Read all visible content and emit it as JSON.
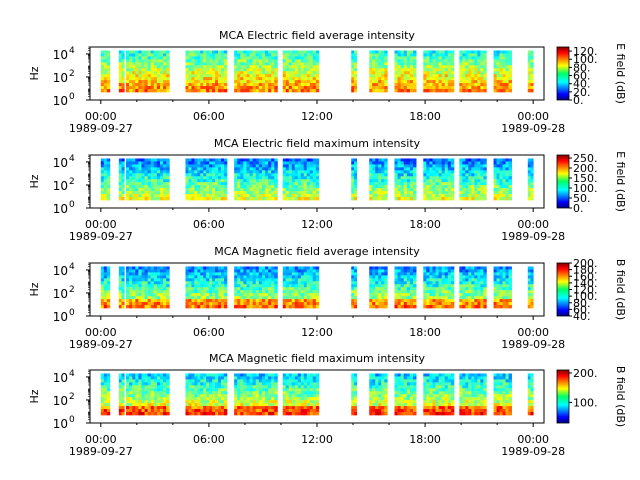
{
  "chart_data": [
    {
      "type": "heatmap",
      "title": "MCA  Electric field average intensity",
      "ylabel": "Hz",
      "y_scale": "log",
      "ylim": [
        1,
        40000
      ],
      "y_ticks": [
        {
          "value": 1,
          "label": "10",
          "exp": "0"
        },
        {
          "value": 100,
          "label": "10",
          "exp": "2"
        },
        {
          "value": 10000,
          "label": "10",
          "exp": "4"
        }
      ],
      "x_ticks": [
        "00:00",
        "06:00",
        "12:00",
        "18:00",
        "00:00"
      ],
      "x_dates": [
        "1989-09-27",
        "1989-09-28"
      ],
      "xlim_hours": [
        -0.6,
        24.6
      ],
      "colorbar": {
        "label": "E field (dB)",
        "range": [
          0,
          130
        ],
        "ticks": [
          "0.",
          "20.",
          "40.",
          "60.",
          "80.",
          "100.",
          "120."
        ],
        "tick_values": [
          0,
          20,
          40,
          60,
          80,
          100,
          120
        ]
      },
      "data_intervals_hours": [
        [
          0,
          0.5
        ],
        [
          1,
          1.3
        ],
        [
          1.4,
          3.8
        ],
        [
          4.7,
          7
        ],
        [
          7.4,
          9.8
        ],
        [
          10.1,
          12.1
        ],
        [
          13.9,
          14.2
        ],
        [
          14.9,
          15.9
        ],
        [
          16.3,
          17.5
        ],
        [
          17.9,
          19.6
        ],
        [
          19.9,
          21.4
        ],
        [
          21.8,
          22.8
        ],
        [
          23.7,
          24
        ]
      ],
      "mean_level_db": 75
    },
    {
      "type": "heatmap",
      "title": "MCA  Electric field maximum intensity",
      "ylabel": "Hz",
      "y_scale": "log",
      "ylim": [
        1,
        40000
      ],
      "y_ticks": [
        {
          "value": 1,
          "label": "10",
          "exp": "0"
        },
        {
          "value": 100,
          "label": "10",
          "exp": "2"
        },
        {
          "value": 10000,
          "label": "10",
          "exp": "4"
        }
      ],
      "x_ticks": [
        "00:00",
        "06:00",
        "12:00",
        "18:00",
        "00:00"
      ],
      "x_dates": [
        "1989-09-27",
        "1989-09-28"
      ],
      "xlim_hours": [
        -0.6,
        24.6
      ],
      "colorbar": {
        "label": "E field (dB)",
        "range": [
          0,
          265
        ],
        "ticks": [
          "0.",
          "50.",
          "100.",
          "150.",
          "200.",
          "250."
        ],
        "tick_values": [
          0,
          50,
          100,
          150,
          200,
          250
        ]
      },
      "data_intervals_hours": [
        [
          0,
          0.5
        ],
        [
          1,
          1.3
        ],
        [
          1.4,
          3.8
        ],
        [
          4.7,
          7
        ],
        [
          7.4,
          9.8
        ],
        [
          10.1,
          12.1
        ],
        [
          13.9,
          14.2
        ],
        [
          14.9,
          15.9
        ],
        [
          16.3,
          17.5
        ],
        [
          17.9,
          19.6
        ],
        [
          19.9,
          21.4
        ],
        [
          21.8,
          22.8
        ],
        [
          23.7,
          24
        ]
      ],
      "mean_level_db": 110
    },
    {
      "type": "heatmap",
      "title": "MCA  Magnetic field average intensity",
      "ylabel": "Hz",
      "y_scale": "log",
      "ylim": [
        1,
        40000
      ],
      "y_ticks": [
        {
          "value": 1,
          "label": "10",
          "exp": "0"
        },
        {
          "value": 100,
          "label": "10",
          "exp": "2"
        },
        {
          "value": 10000,
          "label": "10",
          "exp": "4"
        }
      ],
      "x_ticks": [
        "00:00",
        "06:00",
        "12:00",
        "18:00",
        "00:00"
      ],
      "x_dates": [
        "1989-09-27",
        "1989-09-28"
      ],
      "xlim_hours": [
        -0.6,
        24.6
      ],
      "colorbar": {
        "label": "B field (dB)",
        "range": [
          40,
          200
        ],
        "ticks": [
          "40.",
          "60.",
          "80.",
          "100.",
          "120.",
          "140.",
          "160.",
          "180.",
          "200."
        ],
        "tick_values": [
          40,
          60,
          80,
          100,
          120,
          140,
          160,
          180,
          200
        ]
      },
      "data_intervals_hours": [
        [
          0,
          0.5
        ],
        [
          1,
          1.3
        ],
        [
          1.4,
          3.8
        ],
        [
          4.7,
          7
        ],
        [
          7.4,
          9.8
        ],
        [
          10.1,
          12.1
        ],
        [
          13.9,
          14.2
        ],
        [
          14.9,
          15.9
        ],
        [
          16.3,
          17.5
        ],
        [
          17.9,
          19.6
        ],
        [
          19.9,
          21.4
        ],
        [
          21.8,
          22.8
        ],
        [
          23.7,
          24
        ]
      ],
      "mean_level_db": 110
    },
    {
      "type": "heatmap",
      "title": "MCA  Magnetic field maximum intensity",
      "ylabel": "Hz",
      "y_scale": "log",
      "ylim": [
        1,
        40000
      ],
      "y_ticks": [
        {
          "value": 1,
          "label": "10",
          "exp": "0"
        },
        {
          "value": 100,
          "label": "10",
          "exp": "2"
        },
        {
          "value": 10000,
          "label": "10",
          "exp": "4"
        }
      ],
      "x_ticks": [
        "00:00",
        "06:00",
        "12:00",
        "18:00",
        "00:00"
      ],
      "x_dates": [
        "1989-09-27",
        "1989-09-28"
      ],
      "xlim_hours": [
        -0.6,
        24.6
      ],
      "colorbar": {
        "label": "B field (dB)",
        "range": [
          30,
          210
        ],
        "ticks": [
          "100.",
          "200."
        ],
        "tick_values": [
          100,
          200
        ]
      },
      "data_intervals_hours": [
        [
          0,
          0.5
        ],
        [
          1,
          1.3
        ],
        [
          1.4,
          3.8
        ],
        [
          4.7,
          7
        ],
        [
          7.4,
          9.8
        ],
        [
          10.1,
          12.1
        ],
        [
          13.9,
          14.2
        ],
        [
          14.9,
          15.9
        ],
        [
          16.3,
          17.5
        ],
        [
          17.9,
          19.6
        ],
        [
          19.9,
          21.4
        ],
        [
          21.8,
          22.8
        ],
        [
          23.7,
          24
        ]
      ],
      "mean_level_db": 120
    }
  ]
}
